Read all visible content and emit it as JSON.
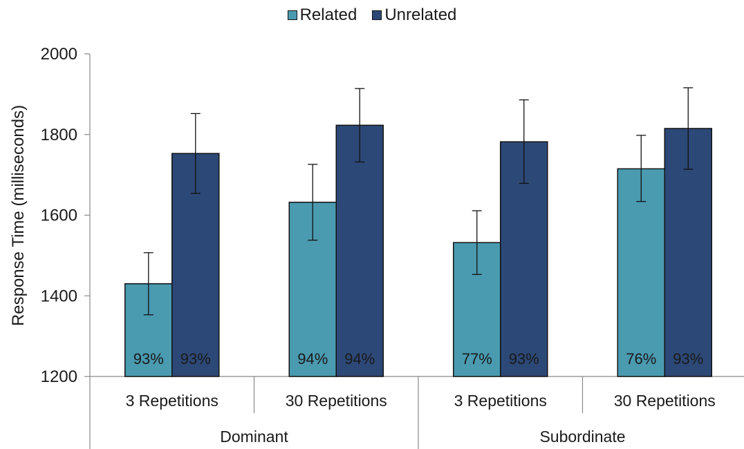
{
  "chart_data": {
    "type": "bar",
    "ylabel": "Response Time (milliseconds)",
    "ylim": [
      1200,
      2000
    ],
    "yticks": [
      1200,
      1400,
      1600,
      1800,
      2000
    ],
    "legend_position": "top-center",
    "groups": [
      {
        "label": "Dominant",
        "categories": [
          "3 Repetitions",
          "30 Repetitions"
        ]
      },
      {
        "label": "Subordinate",
        "categories": [
          "3 Repetitions",
          "30 Repetitions"
        ]
      }
    ],
    "categories": [
      "3 Repetitions",
      "30 Repetitions",
      "3 Repetitions",
      "30 Repetitions"
    ],
    "series": [
      {
        "name": "Related",
        "color": "#4a9ab0",
        "values": [
          1430,
          1632,
          1532,
          1715
        ],
        "error_low": [
          1353,
          1538,
          1453,
          1634
        ],
        "error_high": [
          1507,
          1726,
          1611,
          1798
        ],
        "data_labels": [
          "93%",
          "94%",
          "77%",
          "76%"
        ]
      },
      {
        "name": "Unrelated",
        "color": "#2c4876",
        "values": [
          1753,
          1823,
          1782,
          1815
        ],
        "error_low": [
          1654,
          1732,
          1679,
          1714
        ],
        "error_high": [
          1852,
          1914,
          1886,
          1916
        ],
        "data_labels": [
          "93%",
          "94%",
          "93%",
          "93%"
        ]
      }
    ],
    "grid": false
  }
}
